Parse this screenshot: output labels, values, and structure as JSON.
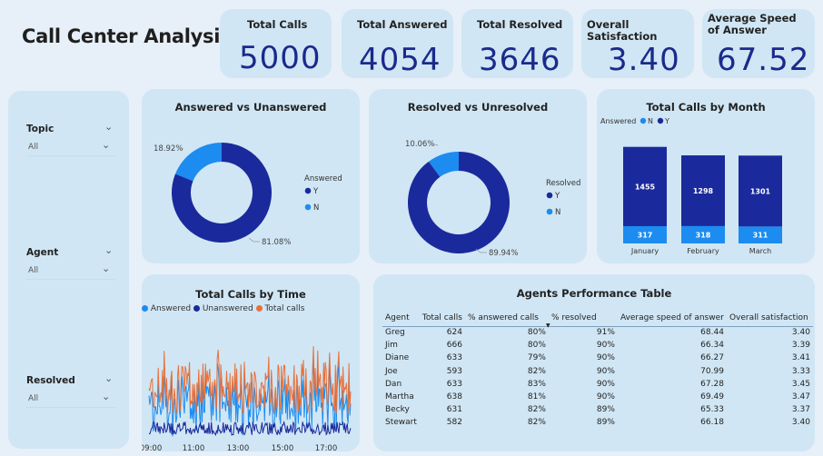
{
  "page": {
    "title": "Call Center Analysis"
  },
  "kpis": [
    {
      "label": "Total Calls",
      "value": "5000"
    },
    {
      "label": "Total Answered",
      "value": "4054"
    },
    {
      "label": "Total Resolved",
      "value": "3646"
    },
    {
      "label": "Overall Satisfaction",
      "value": "3.40"
    },
    {
      "label": "Average Speed of Answer",
      "value": "67.52"
    }
  ],
  "slicers": [
    {
      "label": "Topic",
      "value": "All"
    },
    {
      "label": "Agent",
      "value": "All"
    },
    {
      "label": "Resolved",
      "value": "All"
    }
  ],
  "colors": {
    "dark_blue": "#1a2a9c",
    "light_blue": "#1c8cf0",
    "orange": "#e8703a",
    "card_bg": "#d0e6f4"
  },
  "chart_data": [
    {
      "type": "pie",
      "title": "Answered vs Unanswered",
      "legend_title": "Answered",
      "slices": [
        {
          "name": "Y",
          "value": 81.08,
          "label": "81.08%",
          "color": "#1a2a9c"
        },
        {
          "name": "N",
          "value": 18.92,
          "label": "18.92%",
          "color": "#1c8cf0"
        }
      ]
    },
    {
      "type": "pie",
      "title": "Resolved vs Unresolved",
      "legend_title": "Resolved",
      "slices": [
        {
          "name": "Y",
          "value": 89.94,
          "label": "89.94%",
          "color": "#1a2a9c"
        },
        {
          "name": "N",
          "value": 10.06,
          "label": "10.06%",
          "color": "#1c8cf0"
        }
      ]
    },
    {
      "type": "bar",
      "title": "Total Calls by Month",
      "legend_title": "Answered",
      "stacked": true,
      "categories": [
        "January",
        "February",
        "March"
      ],
      "series": [
        {
          "name": "N",
          "values": [
            317,
            318,
            311
          ],
          "color": "#1c8cf0"
        },
        {
          "name": "Y",
          "values": [
            1455,
            1298,
            1301
          ],
          "color": "#1a2a9c"
        }
      ]
    },
    {
      "type": "line",
      "title": "Total Calls by Time",
      "x_ticks": [
        "09:00",
        "11:00",
        "13:00",
        "15:00",
        "17:00"
      ],
      "series": [
        {
          "name": "Answered",
          "color": "#1c8cf0"
        },
        {
          "name": "Unanswered",
          "color": "#1a2a9c"
        },
        {
          "name": "Total calls",
          "color": "#e8703a"
        }
      ]
    },
    {
      "type": "table",
      "title": "Agents Performance Table",
      "columns": [
        "Agent",
        "Total calls",
        "% answered calls",
        "% resolved",
        "Average speed of answer",
        "Overall satisfaction"
      ],
      "rows": [
        [
          "Greg",
          "624",
          "80%",
          "91%",
          "68.44",
          "3.40"
        ],
        [
          "Jim",
          "666",
          "80%",
          "90%",
          "66.34",
          "3.39"
        ],
        [
          "Diane",
          "633",
          "79%",
          "90%",
          "66.27",
          "3.41"
        ],
        [
          "Joe",
          "593",
          "82%",
          "90%",
          "70.99",
          "3.33"
        ],
        [
          "Dan",
          "633",
          "83%",
          "90%",
          "67.28",
          "3.45"
        ],
        [
          "Martha",
          "638",
          "81%",
          "90%",
          "69.49",
          "3.47"
        ],
        [
          "Becky",
          "631",
          "82%",
          "89%",
          "65.33",
          "3.37"
        ],
        [
          "Stewart",
          "582",
          "82%",
          "89%",
          "66.18",
          "3.40"
        ]
      ]
    }
  ]
}
